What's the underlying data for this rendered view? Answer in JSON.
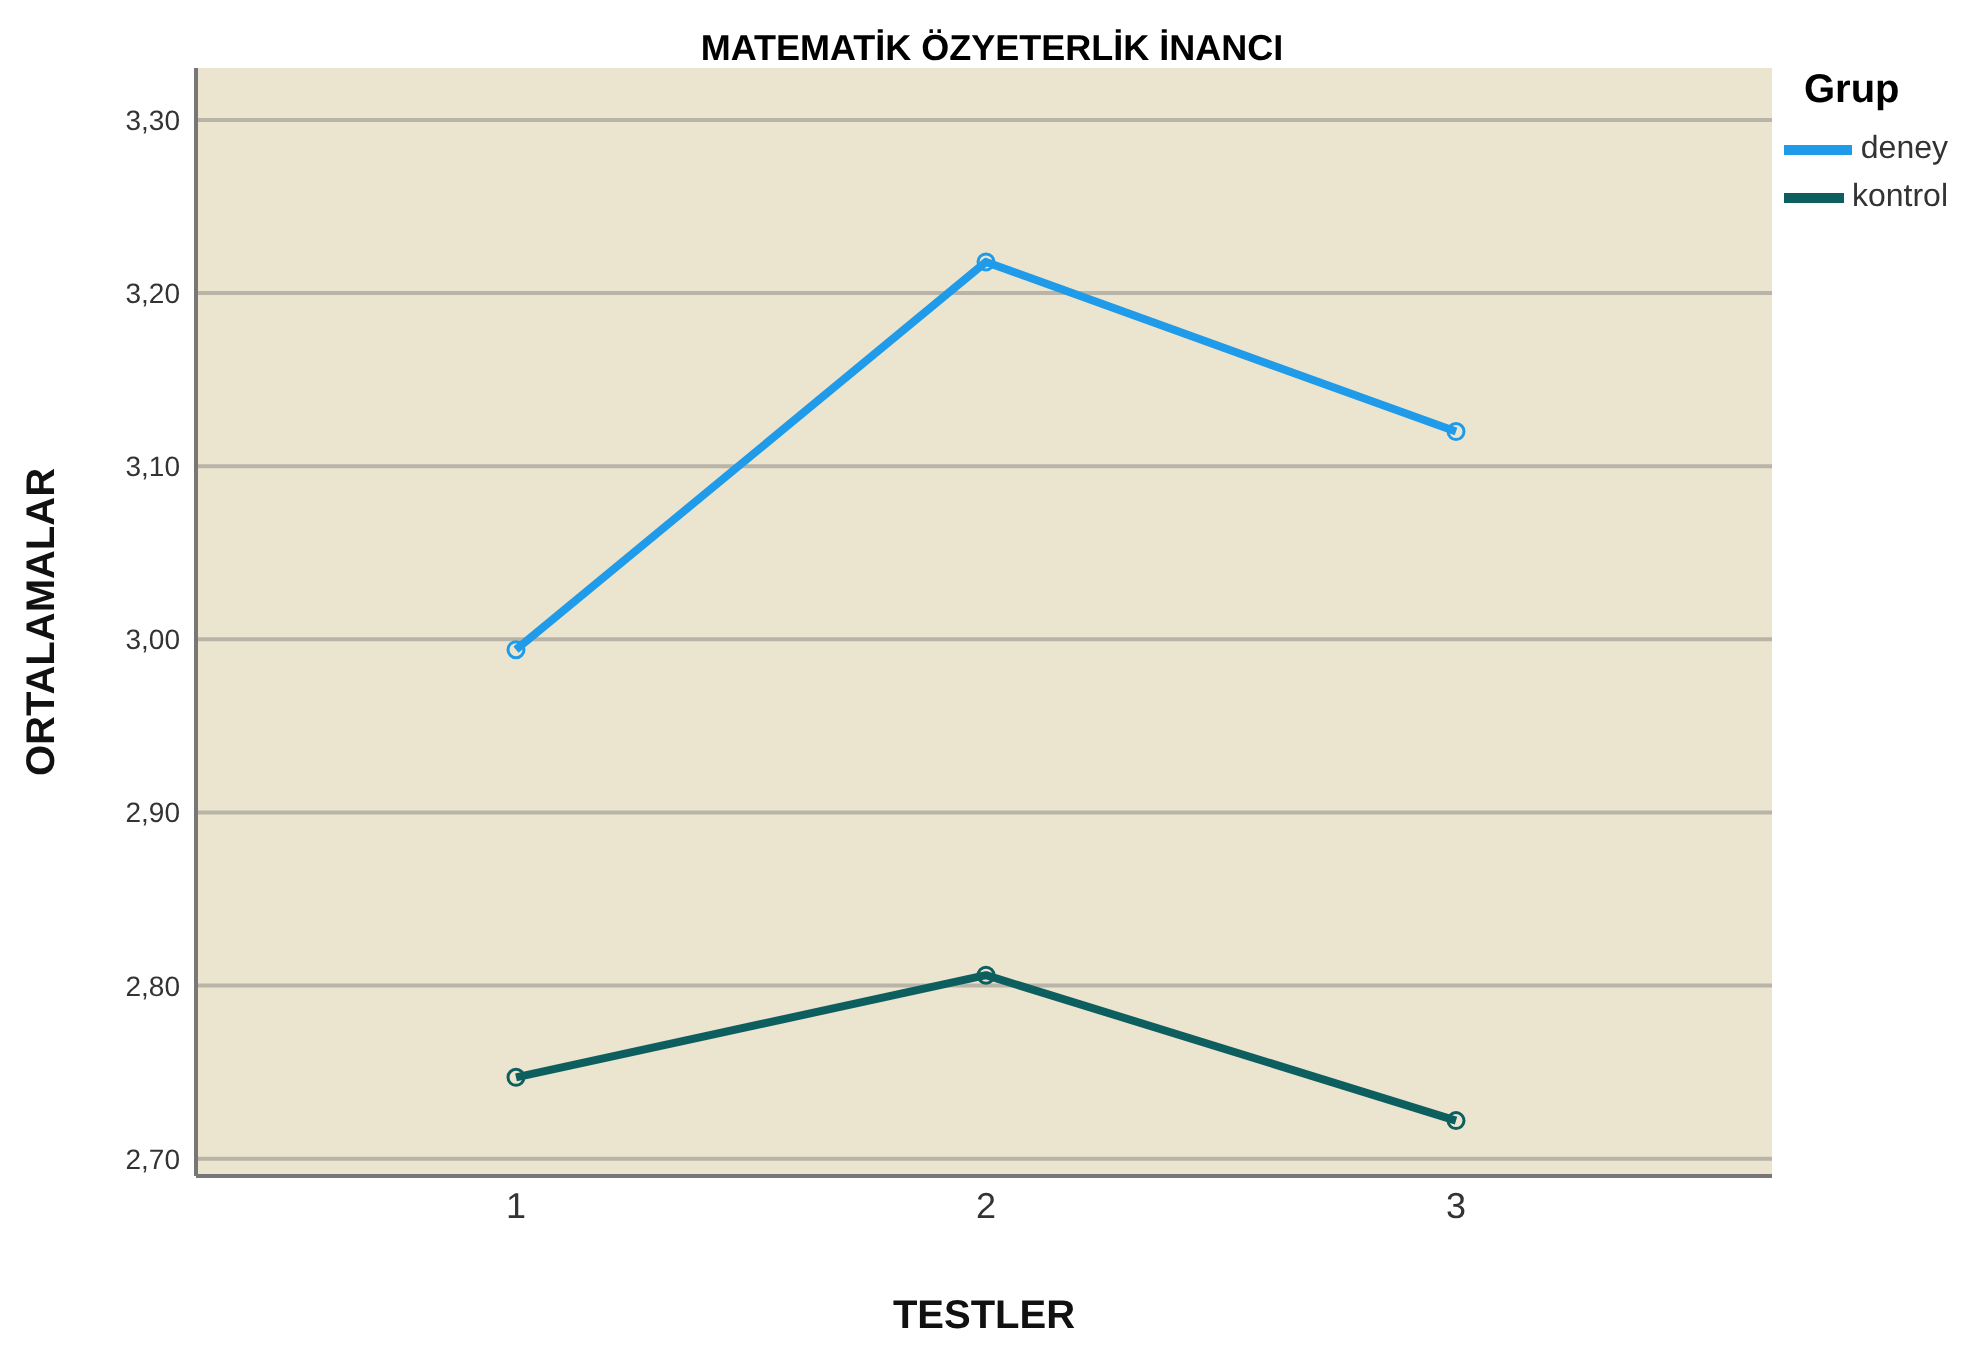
{
  "chart_data": {
    "type": "line",
    "title": "MATEMATİK ÖZYETERLİK İNANCI",
    "xlabel": "TESTLER",
    "ylabel": "ORTALAMALAR",
    "legend_title": "Grup",
    "categories": [
      "1",
      "2",
      "3"
    ],
    "series": [
      {
        "name": "deney",
        "color": "#1f9bea",
        "values": [
          2.994,
          3.218,
          3.12
        ]
      },
      {
        "name": "kontrol",
        "color": "#0d5e5e",
        "values": [
          2.747,
          2.806,
          2.722
        ]
      }
    ],
    "ylim": [
      2.69,
      3.33
    ],
    "yticks": [
      {
        "value": 2.7,
        "label": "2,70"
      },
      {
        "value": 2.8,
        "label": "2,80"
      },
      {
        "value": 2.9,
        "label": "2,90"
      },
      {
        "value": 3.0,
        "label": "3,00"
      },
      {
        "value": 3.1,
        "label": "3,10"
      },
      {
        "value": 3.2,
        "label": "3,20"
      },
      {
        "value": 3.3,
        "label": "3,30"
      }
    ],
    "grid": "y",
    "legend": "top right",
    "marker": "circle",
    "line_style": "solid"
  }
}
